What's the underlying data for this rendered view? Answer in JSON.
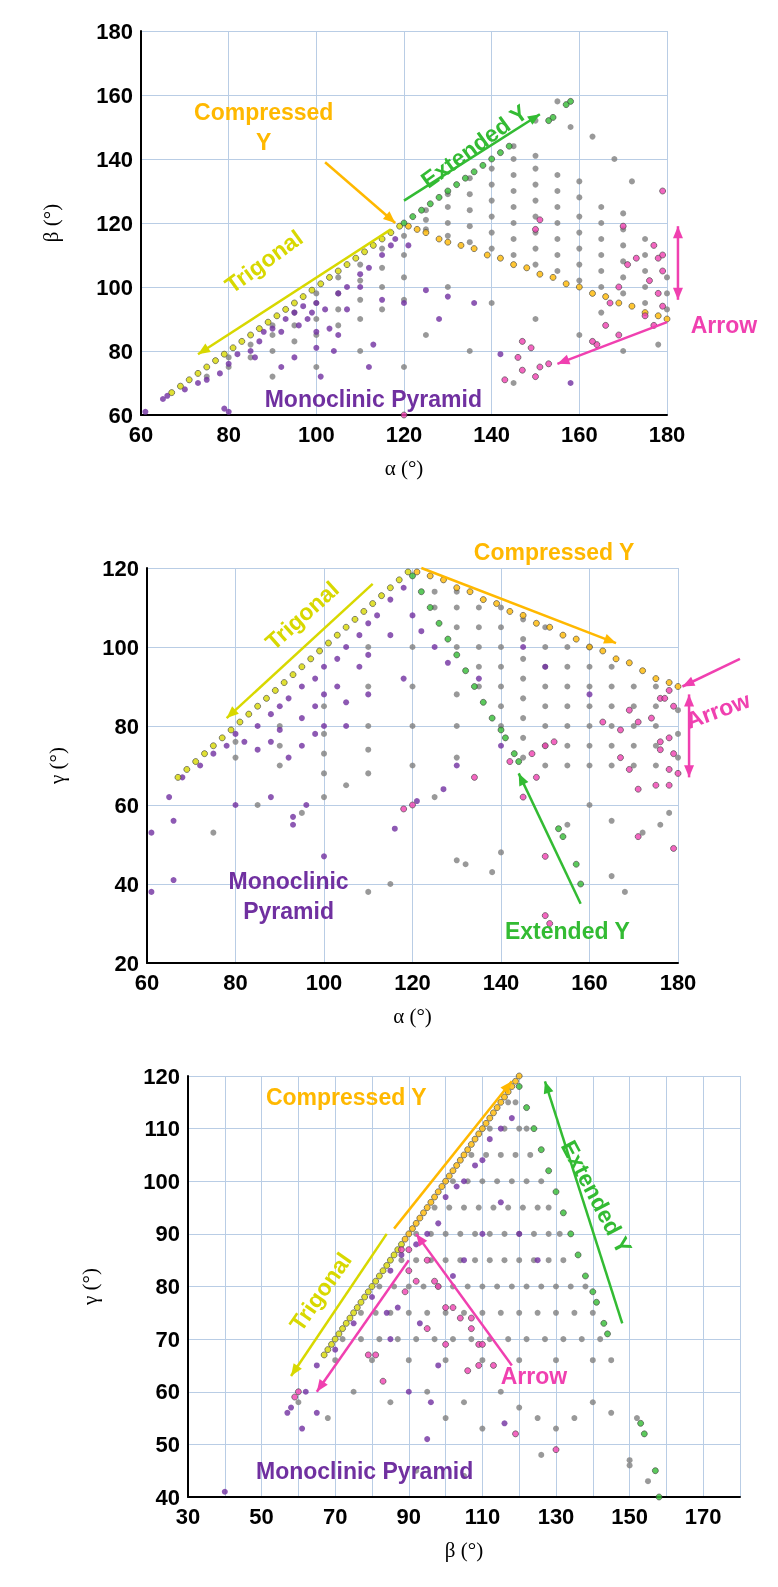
{
  "chart_data": [
    {
      "type": "scatter",
      "xlabel": "α (°)",
      "ylabel": "β (°)",
      "xlim": [
        60,
        180
      ],
      "ylim": [
        60,
        180
      ],
      "xticks": [
        60,
        80,
        100,
        120,
        140,
        160,
        180
      ],
      "yticks": [
        60,
        80,
        100,
        120,
        140,
        160,
        180
      ],
      "grid": true,
      "marker": "circle",
      "series": [
        {
          "color": "#808080",
          "x": [
            125,
            125,
            125,
            130,
            130,
            130,
            130,
            135,
            135,
            135,
            135,
            135,
            140,
            140,
            140,
            140,
            140,
            140,
            145,
            145,
            145,
            145,
            145,
            145,
            145,
            145,
            150,
            150,
            150,
            150,
            150,
            150,
            150,
            150,
            155,
            155,
            155,
            155,
            155,
            155,
            155,
            160,
            160,
            160,
            160,
            160,
            160,
            160,
            165,
            165,
            165,
            165,
            165,
            165,
            170,
            170,
            170,
            170,
            170,
            170,
            175,
            175,
            175,
            175,
            175,
            180,
            180,
            180,
            75,
            80,
            80,
            85,
            85,
            90,
            90,
            90,
            95,
            95,
            95,
            100,
            100,
            100,
            100,
            105,
            105,
            105,
            105,
            110,
            110,
            110,
            110,
            115,
            115,
            115,
            115,
            120,
            120,
            120,
            120,
            130,
            140,
            150,
            160,
            135,
            125,
            145,
            170,
            155,
            158,
            163,
            168,
            172,
            150,
            110,
            100,
            90,
            120,
            165,
            178
          ],
          "values": [
            118,
            121,
            124,
            116,
            120,
            125,
            129,
            114,
            119,
            124,
            129,
            134,
            112,
            117,
            122,
            127,
            132,
            137,
            110,
            115,
            120,
            125,
            130,
            135,
            140,
            144,
            107,
            112,
            117,
            122,
            127,
            132,
            137,
            141,
            105,
            110,
            115,
            120,
            125,
            130,
            135,
            102,
            107,
            112,
            117,
            122,
            128,
            133,
            100,
            105,
            110,
            115,
            120,
            125,
            98,
            103,
            108,
            113,
            118,
            123,
            95,
            100,
            105,
            110,
            115,
            93,
            98,
            103,
            72,
            75,
            78,
            78,
            82,
            80,
            85,
            88,
            83,
            88,
            92,
            85,
            90,
            95,
            98,
            88,
            93,
            98,
            103,
            90,
            96,
            102,
            107,
            93,
            100,
            106,
            112,
            96,
            103,
            110,
            116,
            100,
            95,
            90,
            85,
            80,
            85,
            70,
            80,
            158,
            150,
            147,
            140,
            133,
            152,
            80,
            75,
            72,
            75,
            92,
            82
          ]
        },
        {
          "name": "Monoclinic Pyramid",
          "color": "#7030a0",
          "x": [
            65,
            66,
            70,
            73,
            75,
            78,
            80,
            82,
            85,
            87,
            88,
            90,
            92,
            93,
            95,
            96,
            97,
            98,
            99,
            100,
            102,
            103,
            105,
            107,
            110,
            112,
            115,
            117,
            118,
            121,
            125,
            130,
            115,
            110,
            107,
            100,
            105,
            113,
            120,
            136,
            128,
            100,
            104,
            95,
            92,
            86,
            79,
            80,
            61,
            142,
            158,
            112,
            101
          ],
          "values": [
            65,
            66,
            68,
            70,
            71,
            73,
            76,
            79,
            80,
            83,
            86,
            87,
            86,
            90,
            92,
            88,
            94,
            90,
            92,
            95,
            93,
            87,
            98,
            100,
            104,
            106,
            110,
            113,
            115,
            113,
            99,
            97,
            96,
            100,
            93,
            86,
            85,
            82,
            95,
            95,
            90,
            81,
            80,
            78,
            75,
            78,
            62,
            61,
            61,
            79,
            70,
            75,
            72
          ]
        },
        {
          "name": "Trigonal",
          "color": "#d8d800",
          "x": [
            67,
            69,
            71,
            73,
            75,
            77,
            79,
            81,
            83,
            85,
            87,
            89,
            91,
            93,
            95,
            97,
            99,
            101,
            103,
            105,
            107,
            109,
            111,
            113,
            115,
            117,
            119
          ],
          "values": [
            67,
            69,
            71,
            73,
            75,
            77,
            79,
            81,
            83,
            85,
            87,
            89,
            91,
            93,
            95,
            97,
            99,
            101,
            103,
            105,
            107,
            109,
            111,
            113,
            115,
            117,
            119
          ]
        },
        {
          "name": "Compressed Y",
          "color": "#ffb800",
          "x": [
            121,
            123,
            125,
            128,
            130,
            133,
            136,
            139,
            142,
            145,
            148,
            151,
            154,
            157,
            160,
            163,
            166,
            169,
            172,
            175,
            178,
            180
          ],
          "values": [
            119,
            118,
            117,
            115,
            114,
            113,
            112,
            110,
            109,
            107,
            106,
            104,
            103,
            101,
            100,
            98,
            97,
            95,
            94,
            92,
            91,
            90
          ]
        },
        {
          "name": "Extended Y",
          "color": "#33bb33",
          "x": [
            120,
            122,
            124,
            126,
            128,
            130,
            132,
            134,
            136,
            138,
            140,
            142,
            144,
            153,
            154,
            157,
            158
          ],
          "values": [
            120,
            122,
            124,
            126,
            128,
            130,
            132,
            134,
            136,
            138,
            140,
            142,
            144,
            152,
            153,
            157,
            158
          ]
        },
        {
          "name": "Arrow",
          "color": "#f040b0",
          "x": [
            179,
            151,
            150,
            170,
            171,
            173,
            177,
            178,
            179,
            179,
            176,
            178,
            179,
            169,
            167,
            175,
            177,
            166,
            169,
            164,
            163,
            147,
            149,
            146,
            153,
            151,
            147,
            143,
            150,
            120
          ],
          "values": [
            130,
            121,
            118,
            119,
            107,
            109,
            113,
            109,
            110,
            105,
            102,
            98,
            94,
            100,
            95,
            91,
            88,
            88,
            85,
            82,
            83,
            83,
            81,
            78,
            76,
            75,
            74,
            71,
            72,
            60
          ]
        }
      ]
    },
    {
      "type": "scatter",
      "xlabel": "α (°)",
      "ylabel": "γ (°)",
      "xlim": [
        60,
        180
      ],
      "ylim": [
        20,
        120
      ],
      "xticks": [
        60,
        80,
        100,
        120,
        140,
        160,
        180
      ],
      "yticks": [
        20,
        40,
        60,
        80,
        100,
        120
      ],
      "grid": true,
      "marker": "circle",
      "series": [
        {
          "color": "#808080",
          "x": [
            125,
            125,
            130,
            130,
            130,
            130,
            135,
            135,
            135,
            135,
            135,
            140,
            140,
            140,
            140,
            140,
            140,
            140,
            145,
            145,
            145,
            145,
            145,
            145,
            145,
            145,
            150,
            150,
            150,
            150,
            150,
            150,
            150,
            150,
            155,
            155,
            155,
            155,
            155,
            155,
            155,
            160,
            160,
            160,
            160,
            160,
            160,
            160,
            165,
            165,
            165,
            165,
            165,
            165,
            170,
            170,
            170,
            170,
            170,
            175,
            175,
            175,
            175,
            175,
            180,
            180,
            180,
            80,
            80,
            90,
            90,
            90,
            100,
            100,
            100,
            100,
            110,
            110,
            110,
            110,
            110,
            120,
            120,
            120,
            120,
            130,
            130,
            130,
            75,
            85,
            95,
            105,
            110,
            115,
            130,
            132,
            138,
            140,
            155,
            160,
            165,
            172,
            176,
            165,
            168,
            178,
            100,
            125
          ],
          "values": [
            110,
            114,
            100,
            105,
            110,
            114,
            90,
            95,
            100,
            105,
            110,
            80,
            85,
            90,
            95,
            100,
            105,
            110,
            72,
            77,
            82,
            87,
            92,
            97,
            102,
            107,
            70,
            75,
            80,
            85,
            90,
            95,
            100,
            105,
            70,
            75,
            80,
            85,
            90,
            95,
            100,
            70,
            75,
            80,
            85,
            90,
            95,
            100,
            70,
            75,
            80,
            85,
            90,
            95,
            70,
            75,
            80,
            85,
            90,
            70,
            75,
            80,
            85,
            90,
            72,
            78,
            84,
            72,
            76,
            70,
            75,
            80,
            68,
            73,
            78,
            85,
            68,
            74,
            80,
            90,
            100,
            70,
            80,
            90,
            100,
            72,
            80,
            88,
            53,
            60,
            58,
            65,
            38,
            40,
            46,
            45,
            43,
            48,
            55,
            60,
            56,
            53,
            55,
            42,
            38,
            58,
            62,
            62
          ]
        },
        {
          "name": "Monoclinic Pyramid",
          "color": "#7030a0",
          "x": [
            68,
            72,
            75,
            78,
            80,
            82,
            85,
            85,
            88,
            88,
            90,
            90,
            92,
            92,
            95,
            95,
            95,
            98,
            98,
            98,
            100,
            100,
            100,
            103,
            103,
            105,
            105,
            108,
            108,
            110,
            110,
            112,
            115,
            115,
            118,
            120,
            122,
            125,
            128,
            118,
            110,
            105,
            96,
            93,
            100,
            93,
            88,
            80,
            65,
            66,
            61,
            61,
            66,
            116,
            121,
            130,
            140,
            150,
            160,
            145,
            135,
            127
          ],
          "values": [
            67,
            70,
            73,
            75,
            78,
            76,
            80,
            74,
            83,
            76,
            85,
            79,
            87,
            72,
            90,
            82,
            75,
            92,
            85,
            78,
            95,
            88,
            80,
            97,
            90,
            100,
            86,
            103,
            95,
            106,
            98,
            108,
            112,
            103,
            115,
            108,
            104,
            100,
            96,
            92,
            88,
            80,
            60,
            57,
            47,
            55,
            62,
            60,
            62,
            56,
            53,
            38,
            41,
            54,
            61,
            70,
            75,
            95,
            88,
            100,
            92,
            64
          ]
        },
        {
          "name": "Trigonal",
          "color": "#d8d800",
          "x": [
            67,
            69,
            71,
            73,
            75,
            77,
            79,
            81,
            83,
            85,
            87,
            89,
            91,
            93,
            95,
            97,
            99,
            101,
            103,
            105,
            107,
            109,
            111,
            113,
            115,
            117,
            119
          ],
          "values": [
            67,
            69,
            71,
            73,
            75,
            77,
            79,
            81,
            83,
            85,
            87,
            89,
            91,
            93,
            95,
            97,
            99,
            101,
            103,
            105,
            107,
            109,
            111,
            113,
            115,
            117,
            119
          ]
        },
        {
          "name": "Compressed Y",
          "color": "#ffb800",
          "x": [
            121,
            124,
            127,
            130,
            133,
            136,
            139,
            142,
            145,
            148,
            151,
            154,
            157,
            160,
            163,
            166,
            169,
            172,
            175,
            178,
            180
          ],
          "values": [
            119,
            118,
            117,
            115,
            114,
            112,
            111,
            109,
            108,
            106,
            105,
            103,
            102,
            100,
            99,
            97,
            96,
            94,
            92,
            91,
            90
          ]
        },
        {
          "name": "Extended Y",
          "color": "#33bb33",
          "x": [
            120,
            122,
            124,
            126,
            128,
            130,
            132,
            134,
            136,
            138,
            140,
            141,
            143,
            144,
            153,
            154,
            157,
            158
          ],
          "values": [
            118,
            114,
            110,
            106,
            102,
            98,
            94,
            90,
            86,
            82,
            79,
            77,
            73,
            71,
            54,
            52,
            45,
            40
          ]
        },
        {
          "name": "Arrow",
          "color": "#f040b0",
          "x": [
            178,
            179,
            176,
            177,
            163,
            167,
            169,
            171,
            174,
            176,
            176,
            178,
            179,
            167,
            169,
            175,
            171,
            178,
            180,
            178,
            142,
            145,
            147,
            148,
            134,
            150,
            152,
            150,
            171,
            179,
            150,
            151,
            118,
            120
          ],
          "values": [
            89,
            85,
            87,
            87,
            81,
            79,
            84,
            81,
            82,
            76,
            74,
            77,
            73,
            72,
            69,
            65,
            64,
            65,
            68,
            69,
            71,
            62,
            73,
            67,
            67,
            75,
            76,
            47,
            52,
            49,
            32,
            30,
            59,
            60
          ]
        }
      ]
    },
    {
      "type": "scatter",
      "xlabel": "β (°)",
      "ylabel": "γ (°)",
      "xlim": [
        30,
        180
      ],
      "ylim": [
        40,
        120
      ],
      "xticks": [
        30,
        {
          "value": 40,
          "label": null
        },
        50,
        {
          "value": 60,
          "label": null
        },
        70,
        {
          "value": 80,
          "label": null
        },
        90,
        {
          "value": 100,
          "label": null
        },
        110,
        {
          "value": 120,
          "label": null
        },
        130,
        {
          "value": 140,
          "label": null
        },
        150,
        {
          "value": 160,
          "label": null
        },
        170,
        {
          "value": 180,
          "label": null
        }
      ],
      "yticks": [
        40,
        50,
        60,
        70,
        80,
        90,
        100,
        110,
        120
      ],
      "grid": true,
      "marker": "circle",
      "series": [
        {
          "color": "#808080",
          "x": [
            117,
            119,
            112,
            116,
            120,
            122,
            107,
            111,
            115,
            119,
            123,
            102,
            106,
            110,
            114,
            118,
            122,
            126,
            97,
            101,
            105,
            109,
            113,
            117,
            121,
            125,
            128,
            92,
            96,
            100,
            104,
            108,
            112,
            116,
            120,
            124,
            128,
            131,
            88,
            92,
            96,
            100,
            104,
            108,
            112,
            116,
            120,
            124,
            128,
            132,
            82,
            86,
            90,
            94,
            98,
            102,
            106,
            110,
            114,
            118,
            122,
            126,
            130,
            134,
            138,
            77,
            81,
            85,
            90,
            95,
            100,
            105,
            110,
            115,
            120,
            125,
            130,
            135,
            140,
            72,
            77,
            82,
            87,
            92,
            97,
            102,
            107,
            112,
            117,
            122,
            127,
            132,
            137,
            142,
            70,
            80,
            90,
            100,
            110,
            120,
            130,
            140,
            145,
            60,
            68,
            75,
            85,
            95,
            100,
            105,
            110,
            115,
            120,
            125,
            130,
            135,
            140,
            145,
            152,
            150,
            155,
            92,
            105,
            126,
            150
          ],
          "values": [
            115,
            115,
            110,
            110,
            110,
            110,
            105,
            105,
            105,
            105,
            105,
            100,
            100,
            100,
            100,
            100,
            100,
            100,
            95,
            95,
            95,
            95,
            95,
            95,
            95,
            95,
            95,
            90,
            90,
            90,
            90,
            90,
            90,
            90,
            90,
            90,
            90,
            90,
            85,
            85,
            85,
            85,
            85,
            85,
            85,
            85,
            85,
            85,
            85,
            85,
            80,
            80,
            80,
            80,
            80,
            80,
            80,
            80,
            80,
            80,
            80,
            80,
            80,
            80,
            80,
            75,
            75,
            75,
            75,
            75,
            75,
            75,
            75,
            75,
            75,
            75,
            75,
            75,
            75,
            70,
            70,
            70,
            70,
            70,
            70,
            70,
            70,
            70,
            70,
            70,
            70,
            70,
            70,
            70,
            66,
            66,
            66,
            66,
            66,
            66,
            66,
            66,
            66,
            58,
            55,
            60,
            58,
            60,
            55,
            58,
            53,
            60,
            57,
            55,
            53,
            55,
            58,
            56,
            55,
            47,
            43,
            45,
            44,
            48,
            46
          ]
        },
        {
          "name": "Monoclinic Pyramid",
          "color": "#7030a0",
          "x": [
            57,
            58,
            61,
            62,
            65,
            70,
            75,
            80,
            85,
            88,
            92,
            95,
            98,
            100,
            103,
            105,
            108,
            110,
            112,
            115,
            118,
            93,
            90,
            96,
            95,
            84,
            115,
            110,
            105,
            102,
            120,
            125,
            116,
            65,
            40,
            85,
            87,
            98
          ],
          "values": [
            56,
            57,
            53,
            60,
            65,
            68,
            73,
            78,
            83,
            86,
            88,
            90,
            92,
            97,
            99,
            100,
            103,
            104,
            108,
            110,
            112,
            73,
            60,
            58,
            51,
            75,
            96,
            90,
            85,
            82,
            90,
            85,
            54,
            56,
            41,
            70,
            76,
            65
          ]
        },
        {
          "name": "Trigonal",
          "color": "#d8d800",
          "x": [
            67,
            68,
            69,
            70,
            71,
            72,
            73,
            74,
            75,
            76,
            77,
            78,
            79,
            80,
            81,
            82,
            83,
            84,
            85,
            86,
            87,
            88
          ],
          "values": [
            67,
            68,
            69,
            70,
            71,
            72,
            73,
            74,
            75,
            76,
            77,
            78,
            79,
            80,
            81,
            82,
            83,
            84,
            85,
            86,
            87,
            88
          ]
        },
        {
          "name": "Compressed Y",
          "color": "#ffb800",
          "x": [
            89,
            90,
            91,
            92,
            93,
            94,
            95,
            96,
            97,
            98,
            99,
            100,
            101,
            102,
            103,
            104,
            105,
            106,
            107,
            108,
            109,
            110,
            111,
            112,
            113,
            114,
            115,
            116,
            117,
            118,
            119,
            120
          ],
          "values": [
            89,
            90,
            91,
            92,
            93,
            94,
            95,
            96,
            97,
            98,
            99,
            100,
            101,
            102,
            103,
            104,
            105,
            106,
            107,
            108,
            109,
            110,
            111,
            112,
            113,
            114,
            115,
            116,
            117,
            118,
            119,
            120
          ]
        },
        {
          "name": "Extended Y",
          "color": "#33bb33",
          "x": [
            120,
            122,
            124,
            126,
            128,
            130,
            132,
            134,
            136,
            138,
            140,
            141,
            143,
            144,
            153,
            154,
            157,
            158
          ],
          "values": [
            118,
            114,
            110,
            106,
            102,
            98,
            94,
            90,
            86,
            82,
            79,
            77,
            73,
            71,
            54,
            52,
            45,
            40
          ]
        },
        {
          "name": "Arrow",
          "color": "#f040b0",
          "x": [
            59,
            60,
            88,
            90,
            95,
            92,
            89,
            97,
            98,
            100,
            102,
            95,
            100,
            104,
            107,
            107,
            109,
            110,
            106,
            109,
            113,
            79,
            81,
            83,
            119,
            130,
            90
          ],
          "values": [
            59,
            60,
            87,
            87,
            85,
            81,
            79,
            81,
            80,
            76,
            76,
            72,
            69,
            74,
            74,
            72,
            69,
            69,
            64,
            65,
            65,
            67,
            67,
            62,
            52,
            49,
            83
          ]
        }
      ]
    }
  ]
}
